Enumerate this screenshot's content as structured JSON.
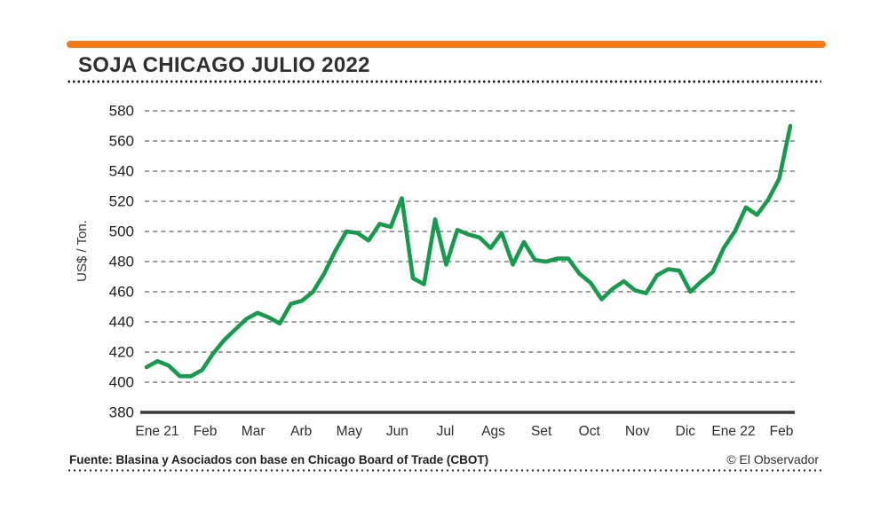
{
  "header": {
    "title": "SOJA CHICAGO JULIO 2022",
    "accent_color": "#ee7d22"
  },
  "footer": {
    "source": "Fuente: Blasina y Asociados con base en Chicago Board of Trade (CBOT)",
    "credit": "© El Observador"
  },
  "chart_data": {
    "type": "line",
    "title": "SOJA CHICAGO JULIO 2022",
    "xlabel": "",
    "ylabel": "US$ / Ton.",
    "ylim": [
      380,
      580
    ],
    "ytick_step": 20,
    "yticks": [
      580,
      560,
      540,
      520,
      500,
      480,
      460,
      440,
      420,
      400,
      380
    ],
    "x_categories": [
      "Ene 21",
      "Feb",
      "Mar",
      "Arb",
      "May",
      "Jun",
      "Jul",
      "Ags",
      "Set",
      "Oct",
      "Nov",
      "Dic",
      "Ene 22",
      "Feb"
    ],
    "grid": "horizontal-dashed",
    "legend_position": "none",
    "line_color": "#169a4d",
    "axis_color": "#3a3a3a",
    "grid_color": "#8f8f8f",
    "tick_label_color": "#1f1f1f",
    "series": [
      {
        "name": "Soja Chicago Julio 2022 (US$/Ton, semanal)",
        "values": [
          410,
          414,
          411,
          404,
          404,
          408,
          419,
          428,
          435,
          442,
          446,
          443,
          439,
          452,
          454,
          460,
          472,
          487,
          500,
          499,
          494,
          505,
          503,
          522,
          469,
          465,
          508,
          478,
          501,
          498,
          496,
          489,
          499,
          478,
          493,
          481,
          480,
          482,
          482,
          472,
          466,
          455,
          462,
          467,
          461,
          459,
          471,
          475,
          474,
          460,
          467,
          473,
          489,
          500,
          516,
          511,
          521,
          535,
          570
        ]
      }
    ]
  }
}
